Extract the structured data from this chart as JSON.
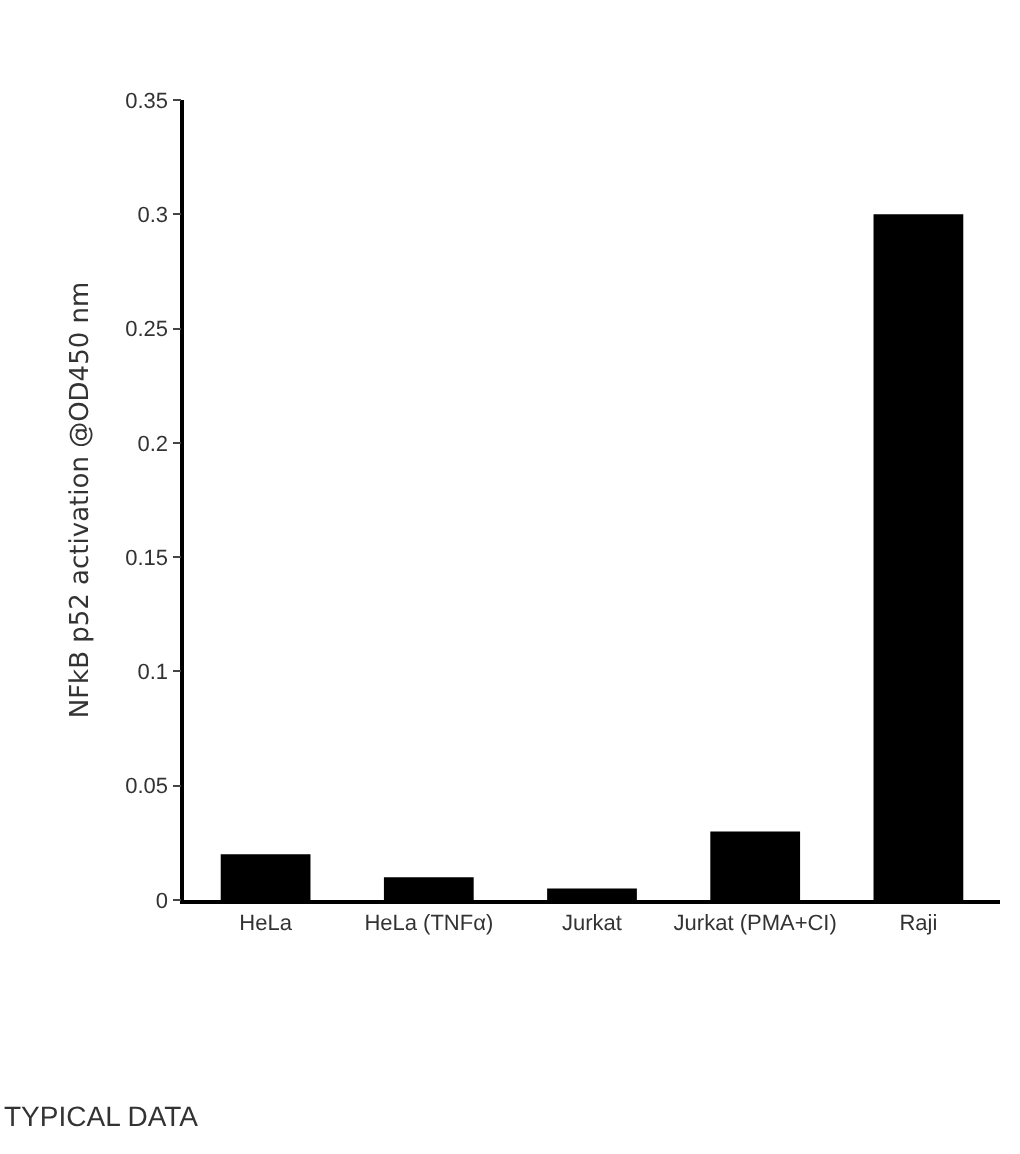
{
  "chart_data": {
    "type": "bar",
    "ylabel": "NFkB p52 activation @OD450 nm",
    "categories": [
      "HeLa",
      "HeLa (TNFα)",
      "Jurkat",
      "Jurkat (PMA+CI)",
      "Raji"
    ],
    "values": [
      0.02,
      0.01,
      0.005,
      0.03,
      0.3
    ],
    "color": "#000000",
    "ylim": [
      0,
      0.35
    ],
    "yticks": [
      0,
      0.05,
      0.1,
      0.15,
      0.2,
      0.25,
      0.3,
      0.35
    ],
    "grid": false,
    "annotations": [
      "TYPICAL DATA"
    ]
  }
}
